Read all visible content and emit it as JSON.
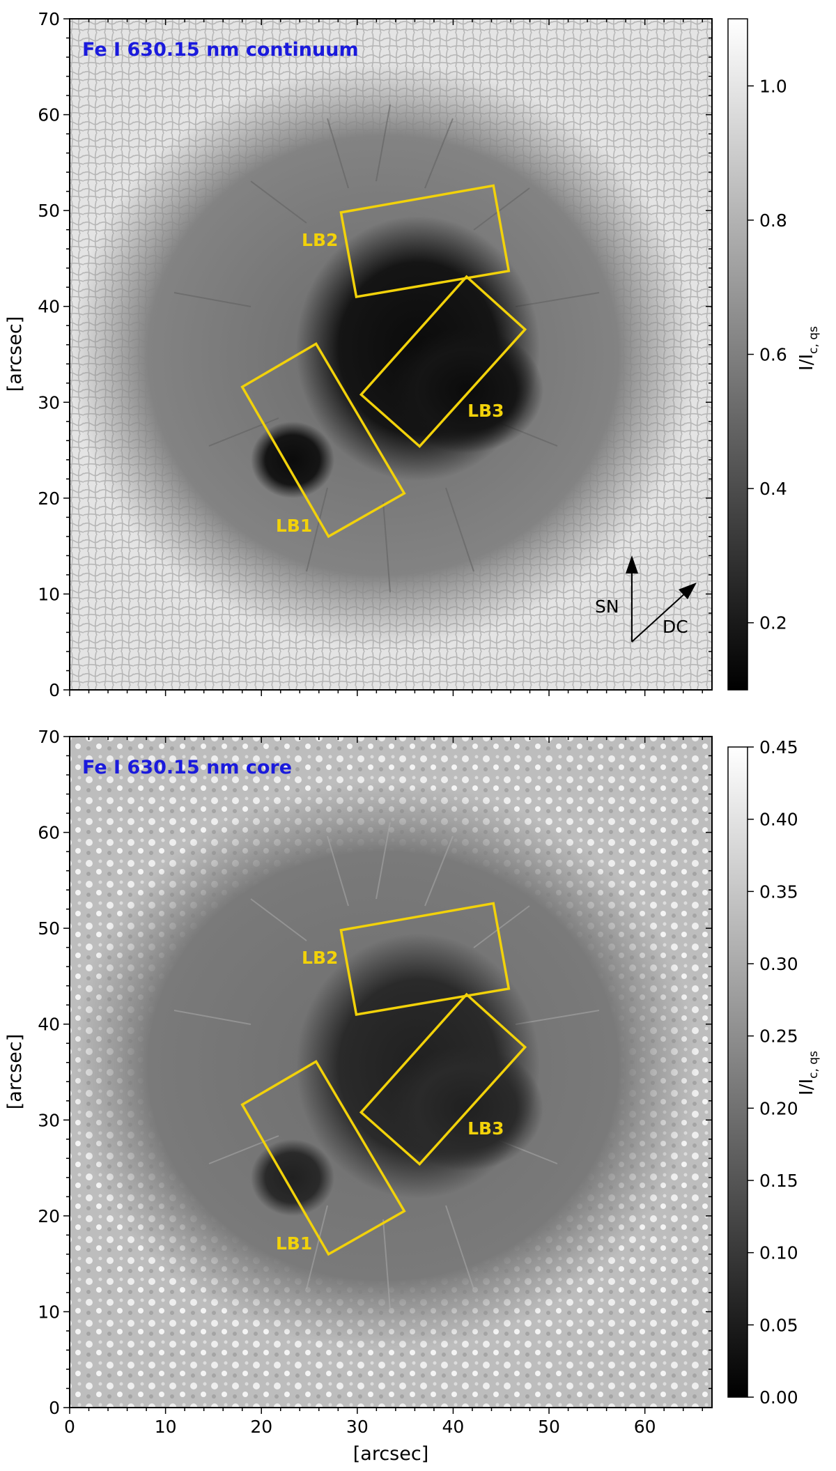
{
  "figure": {
    "panels": [
      {
        "title": "Fe I 630.15 nm continuum",
        "ylabel": "[arcsec]",
        "xlabel": "",
        "x_ticks": [
          "0",
          "10",
          "20",
          "30",
          "40",
          "50",
          "60"
        ],
        "y_ticks": [
          "0",
          "10",
          "20",
          "30",
          "40",
          "50",
          "60",
          "70"
        ],
        "xlim": [
          0,
          67
        ],
        "ylim": [
          0,
          70
        ],
        "colorbar": {
          "label_main": "I/I",
          "label_sub": "c, qs",
          "range": [
            0.1,
            1.1
          ],
          "ticks": [
            "0.2",
            "0.4",
            "0.6",
            "0.8",
            "1.0"
          ]
        },
        "boxes": [
          {
            "label": "LB1",
            "corners": [
              [
                18,
                31.6
              ],
              [
                25.7,
                36.1
              ],
              [
                34.9,
                20.5
              ],
              [
                27.0,
                16.0
              ]
            ],
            "label_pos": [
              21.5,
              16.5
            ]
          },
          {
            "label": "LB2",
            "corners": [
              [
                28.3,
                49.8
              ],
              [
                44.2,
                52.6
              ],
              [
                45.8,
                43.7
              ],
              [
                29.9,
                41.0
              ]
            ],
            "label_pos": [
              24.2,
              46.3
            ]
          },
          {
            "label": "LB3",
            "corners": [
              [
                30.4,
                30.8
              ],
              [
                41.4,
                43.1
              ],
              [
                47.5,
                37.6
              ],
              [
                36.5,
                25.4
              ]
            ],
            "label_pos": [
              41.5,
              28.5
            ]
          }
        ],
        "arrows": {
          "sn_label": "SN",
          "dc_label": "DC"
        }
      },
      {
        "title": "Fe I 630.15 nm core",
        "ylabel": "[arcsec]",
        "xlabel": "[arcsec]",
        "x_ticks": [
          "0",
          "10",
          "20",
          "30",
          "40",
          "50",
          "60"
        ],
        "y_ticks": [
          "0",
          "10",
          "20",
          "30",
          "40",
          "50",
          "60",
          "70"
        ],
        "xlim": [
          0,
          67
        ],
        "ylim": [
          0,
          70
        ],
        "colorbar": {
          "label_main": "I/I",
          "label_sub": "c, qs",
          "range": [
            0.0,
            0.45
          ],
          "ticks": [
            "0.00",
            "0.05",
            "0.10",
            "0.15",
            "0.20",
            "0.25",
            "0.30",
            "0.35",
            "0.40",
            "0.45"
          ]
        },
        "boxes": [
          {
            "label": "LB1",
            "corners": [
              [
                18,
                31.6
              ],
              [
                25.7,
                36.1
              ],
              [
                34.9,
                20.5
              ],
              [
                27.0,
                16.0
              ]
            ],
            "label_pos": [
              21.5,
              16.5
            ]
          },
          {
            "label": "LB2",
            "corners": [
              [
                28.3,
                49.8
              ],
              [
                44.2,
                52.6
              ],
              [
                45.8,
                43.7
              ],
              [
                29.9,
                41.0
              ]
            ],
            "label_pos": [
              24.2,
              46.3
            ]
          },
          {
            "label": "LB3",
            "corners": [
              [
                30.4,
                30.8
              ],
              [
                41.4,
                43.1
              ],
              [
                47.5,
                37.6
              ],
              [
                36.5,
                25.4
              ]
            ],
            "label_pos": [
              41.5,
              28.5
            ]
          }
        ]
      }
    ],
    "colors": {
      "box": "#f2d20a",
      "title": "#1a1adc"
    }
  }
}
